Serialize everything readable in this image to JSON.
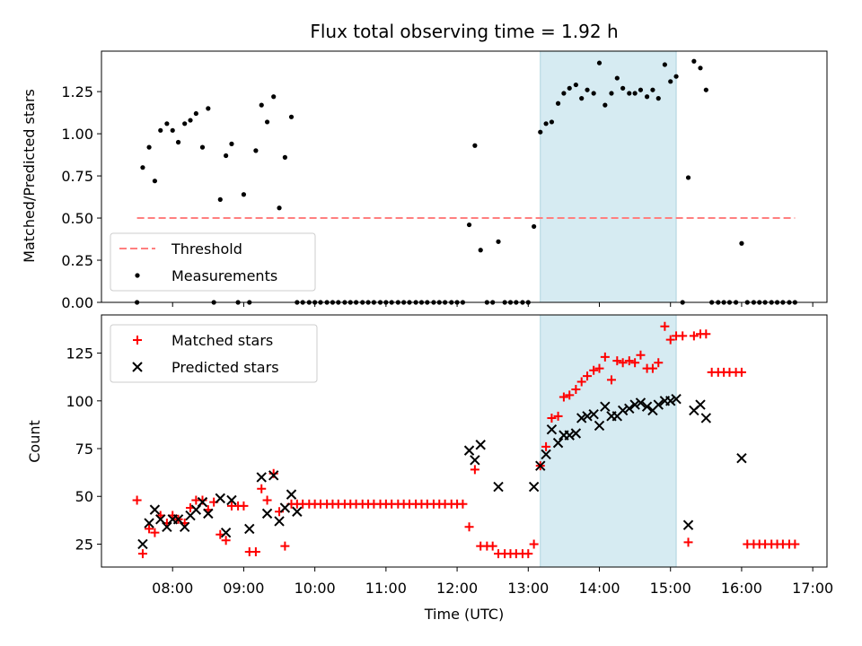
{
  "chart_data": [
    {
      "type": "scatter",
      "title": "Flux total observing time = 1.92 h",
      "xlabel": "",
      "ylabel": "Matched/Predicted stars",
      "xlim": [
        7.0,
        17.2
      ],
      "ylim": [
        0.0,
        1.49
      ],
      "yticks": [
        0.0,
        0.25,
        0.5,
        0.75,
        1.0,
        1.25
      ],
      "ytick_labels": [
        "0.00",
        "0.25",
        "0.50",
        "0.75",
        "1.00",
        "1.25"
      ],
      "highlight_span": [
        13.17,
        15.08
      ],
      "threshold": {
        "name": "Threshold",
        "value": 0.5,
        "x_range": [
          7.5,
          16.75
        ],
        "color": "#ff7f7f"
      },
      "legend": {
        "position": "lower-left",
        "entries": [
          "Threshold",
          "Measurements"
        ]
      },
      "series": [
        {
          "name": "Measurements",
          "color": "#000000",
          "x": [
            7.5,
            7.58,
            7.67,
            7.75,
            7.83,
            7.92,
            8.0,
            8.08,
            8.17,
            8.25,
            8.33,
            8.42,
            8.5,
            8.58,
            8.67,
            8.75,
            8.83,
            8.92,
            9.0,
            9.08,
            9.17,
            9.25,
            9.33,
            9.42,
            9.5,
            9.58,
            9.67,
            9.75,
            9.83,
            9.92,
            10.0,
            10.08,
            10.17,
            10.25,
            10.33,
            10.42,
            10.5,
            10.58,
            10.67,
            10.75,
            10.83,
            10.92,
            11.0,
            11.08,
            11.17,
            11.25,
            11.33,
            11.42,
            11.5,
            11.58,
            11.67,
            11.75,
            11.83,
            11.92,
            12.0,
            12.08,
            12.17,
            12.25,
            12.33,
            12.42,
            12.5,
            12.58,
            12.67,
            12.75,
            12.83,
            12.92,
            13.0,
            13.08,
            13.17,
            13.25,
            13.33,
            13.42,
            13.5,
            13.58,
            13.67,
            13.75,
            13.83,
            13.92,
            14.0,
            14.08,
            14.17,
            14.25,
            14.33,
            14.42,
            14.5,
            14.58,
            14.67,
            14.75,
            14.83,
            14.92,
            15.0,
            15.08,
            15.17,
            15.25,
            15.33,
            15.42,
            15.5,
            15.58,
            15.67,
            15.75,
            15.83,
            15.92,
            16.0,
            16.08,
            16.17,
            16.25,
            16.33,
            16.42,
            16.5,
            16.58,
            16.67,
            16.75
          ],
          "y": [
            0.0,
            0.8,
            0.92,
            0.72,
            1.02,
            1.06,
            1.02,
            0.95,
            1.06,
            1.08,
            1.12,
            0.92,
            1.15,
            0.0,
            0.61,
            0.87,
            0.94,
            0.0,
            0.64,
            0.0,
            0.9,
            1.17,
            1.07,
            1.22,
            0.56,
            0.86,
            1.1,
            0.0,
            0.0,
            0.0,
            0.0,
            0.0,
            0.0,
            0.0,
            0.0,
            0.0,
            0.0,
            0.0,
            0.0,
            0.0,
            0.0,
            0.0,
            0.0,
            0.0,
            0.0,
            0.0,
            0.0,
            0.0,
            0.0,
            0.0,
            0.0,
            0.0,
            0.0,
            0.0,
            0.0,
            0.0,
            0.46,
            0.93,
            0.31,
            0.0,
            0.0,
            0.36,
            0.0,
            0.0,
            0.0,
            0.0,
            0.0,
            0.45,
            1.01,
            1.06,
            1.07,
            1.18,
            1.24,
            1.27,
            1.29,
            1.21,
            1.26,
            1.24,
            1.42,
            1.17,
            1.24,
            1.33,
            1.27,
            1.24,
            1.24,
            1.26,
            1.22,
            1.26,
            1.21,
            1.41,
            1.31,
            1.34,
            0.0,
            0.74,
            1.43,
            1.39,
            1.26,
            0.0,
            0.0,
            0.0,
            0.0,
            0.0,
            0.35,
            0.0,
            0.0,
            0.0,
            0.0,
            0.0,
            0.0,
            0.0,
            0.0,
            0.0
          ]
        }
      ]
    },
    {
      "type": "scatter",
      "title": "",
      "xlabel": "Time (UTC)",
      "ylabel": "Count",
      "xlim": [
        7.0,
        17.2
      ],
      "ylim": [
        13,
        145
      ],
      "xticks": [
        8,
        9,
        10,
        11,
        12,
        13,
        14,
        15,
        16,
        17
      ],
      "xtick_labels": [
        "08:00",
        "09:00",
        "10:00",
        "11:00",
        "12:00",
        "13:00",
        "14:00",
        "15:00",
        "16:00",
        "17:00"
      ],
      "yticks": [
        25,
        50,
        75,
        100,
        125
      ],
      "ytick_labels": [
        "25",
        "50",
        "75",
        "100",
        "125"
      ],
      "highlight_span": [
        13.17,
        15.08
      ],
      "legend": {
        "position": "top-left",
        "entries": [
          "Matched stars",
          "Predicted stars"
        ]
      },
      "series": [
        {
          "name": "Matched stars",
          "marker": "plus",
          "color": "#ff0000",
          "x": [
            7.5,
            7.58,
            7.67,
            7.75,
            7.83,
            7.92,
            8.0,
            8.08,
            8.17,
            8.25,
            8.33,
            8.42,
            8.5,
            8.58,
            8.67,
            8.75,
            8.83,
            8.92,
            9.0,
            9.08,
            9.17,
            9.25,
            9.33,
            9.42,
            9.5,
            9.58,
            9.67,
            9.75,
            9.83,
            9.92,
            10.0,
            10.08,
            10.17,
            10.25,
            10.33,
            10.42,
            10.5,
            10.58,
            10.67,
            10.75,
            10.83,
            10.92,
            11.0,
            11.08,
            11.17,
            11.25,
            11.33,
            11.42,
            11.5,
            11.58,
            11.67,
            11.75,
            11.83,
            11.92,
            12.0,
            12.08,
            12.17,
            12.25,
            12.33,
            12.42,
            12.5,
            12.58,
            12.67,
            12.75,
            12.83,
            12.92,
            13.0,
            13.08,
            13.17,
            13.25,
            13.33,
            13.42,
            13.5,
            13.58,
            13.67,
            13.75,
            13.83,
            13.92,
            14.0,
            14.08,
            14.17,
            14.25,
            14.33,
            14.42,
            14.5,
            14.58,
            14.67,
            14.75,
            14.83,
            14.92,
            15.0,
            15.08,
            15.17,
            15.25,
            15.33,
            15.42,
            15.5,
            15.58,
            15.67,
            15.75,
            15.83,
            15.92,
            16.0,
            16.08,
            16.17,
            16.25,
            16.33,
            16.42,
            16.5,
            16.58,
            16.67,
            16.75
          ],
          "y": [
            48,
            20,
            33,
            31,
            40,
            36,
            40,
            38,
            36,
            44,
            48,
            48,
            43,
            47,
            30,
            27,
            45,
            45,
            45,
            21,
            21,
            54,
            48,
            62,
            42,
            24,
            46,
            46,
            46,
            46,
            46,
            46,
            46,
            46,
            46,
            46,
            46,
            46,
            46,
            46,
            46,
            46,
            46,
            46,
            46,
            46,
            46,
            46,
            46,
            46,
            46,
            46,
            46,
            46,
            46,
            46,
            34,
            64,
            24,
            24,
            24,
            20,
            20,
            20,
            20,
            20,
            20,
            25,
            66,
            76,
            91,
            92,
            102,
            103,
            106,
            110,
            113,
            116,
            117,
            123,
            111,
            121,
            120,
            121,
            120,
            124,
            117,
            117,
            120,
            139,
            132,
            134,
            134,
            26,
            134,
            135,
            135,
            115,
            115,
            115,
            115,
            115,
            115,
            25,
            25,
            25,
            25,
            25,
            25,
            25,
            25,
            25
          ]
        },
        {
          "name": "Predicted stars",
          "marker": "x",
          "color": "#000000",
          "x": [
            7.58,
            7.67,
            7.75,
            7.83,
            7.92,
            8.0,
            8.08,
            8.17,
            8.25,
            8.33,
            8.42,
            8.5,
            8.67,
            8.75,
            8.83,
            9.08,
            9.25,
            9.33,
            9.42,
            9.5,
            9.58,
            9.67,
            9.75,
            12.17,
            12.25,
            12.33,
            12.58,
            13.08,
            13.17,
            13.25,
            13.33,
            13.42,
            13.5,
            13.58,
            13.67,
            13.75,
            13.83,
            13.92,
            14.0,
            14.08,
            14.17,
            14.25,
            14.33,
            14.42,
            14.5,
            14.58,
            14.67,
            14.75,
            14.83,
            14.92,
            15.0,
            15.08,
            15.25,
            15.33,
            15.42,
            15.5,
            16.0
          ],
          "y": [
            25,
            36,
            43,
            38,
            34,
            38,
            38,
            34,
            40,
            43,
            47,
            41,
            49,
            31,
            48,
            33,
            60,
            41,
            61,
            37,
            44,
            51,
            42,
            74,
            69,
            77,
            55,
            55,
            66,
            72,
            85,
            78,
            82,
            82,
            83,
            91,
            92,
            93,
            87,
            97,
            92,
            92,
            95,
            96,
            98,
            99,
            97,
            95,
            98,
            100,
            100,
            101,
            35,
            95,
            98,
            91,
            70
          ]
        }
      ]
    }
  ]
}
